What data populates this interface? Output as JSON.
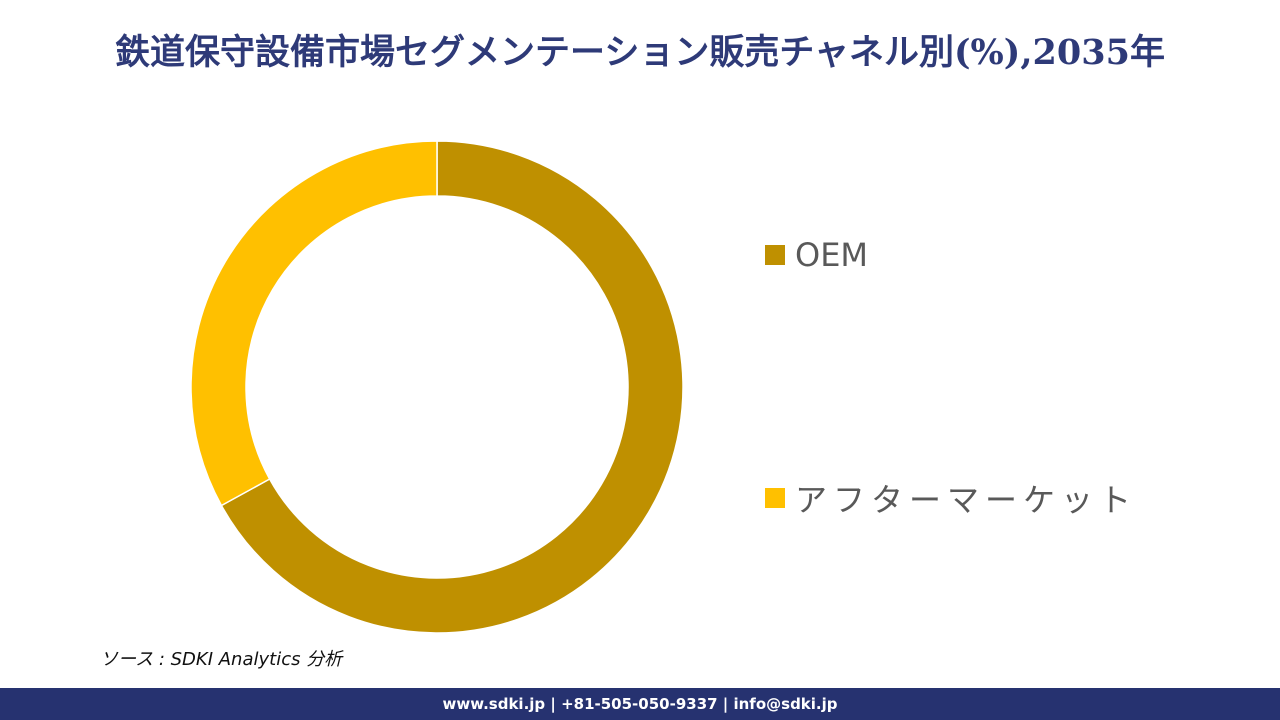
{
  "title": "鉄道保守設備市場セグメンテーション販売チャネル別(%),2035年",
  "legend": {
    "items": [
      {
        "label": "OEM",
        "color": "#bf9000"
      },
      {
        "label": "アフターマーケット",
        "color": "#ffc000"
      }
    ]
  },
  "source": "ソース : SDKI Analytics  分析",
  "footer": {
    "text": "www.sdki.jp | +81-505-050-9337 | info@sdki.jp",
    "background": "#263270"
  },
  "chart_data": {
    "type": "pie",
    "subtype": "donut",
    "title": "鉄道保守設備市場セグメンテーション販売チャネル別(%),2035年",
    "categories": [
      "OEM",
      "アフターマーケット"
    ],
    "values": [
      67,
      33
    ],
    "colors": [
      "#bf9000",
      "#ffc000"
    ],
    "unit": "%",
    "start_angle": "12 o'clock, clockwise",
    "data_labels": false,
    "legend_position": "right"
  }
}
